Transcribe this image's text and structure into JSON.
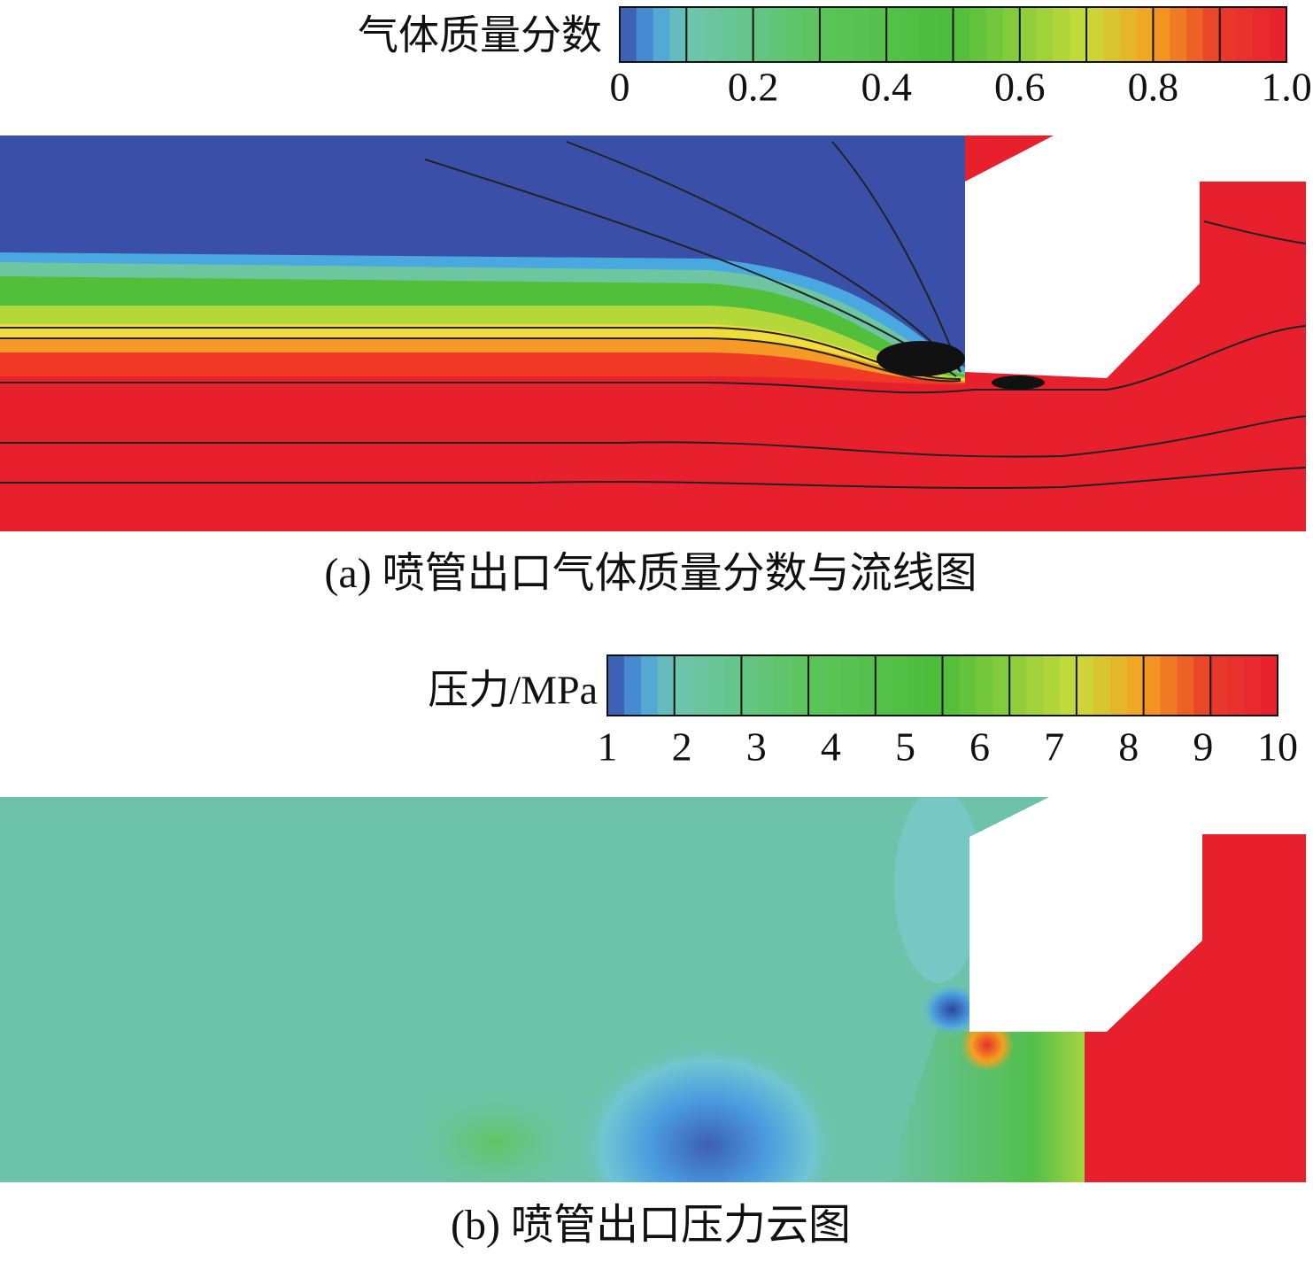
{
  "panels": [
    {
      "colorbar": {
        "label": "气体质量分数",
        "range": [
          0,
          1
        ],
        "ticks": [
          0,
          0.2,
          0.4,
          0.6,
          0.8,
          {
            "value": 1,
            "label": "1.0"
          }
        ]
      },
      "caption": "(a) 喷管出口气体质量分数与流线图"
    },
    {
      "colorbar": {
        "label": "压力/MPa",
        "range": [
          1,
          10
        ],
        "ticks": [
          1,
          2,
          3,
          4,
          5,
          6,
          7,
          8,
          9,
          10
        ]
      },
      "caption": "(b) 喷管出口压力云图"
    }
  ]
}
